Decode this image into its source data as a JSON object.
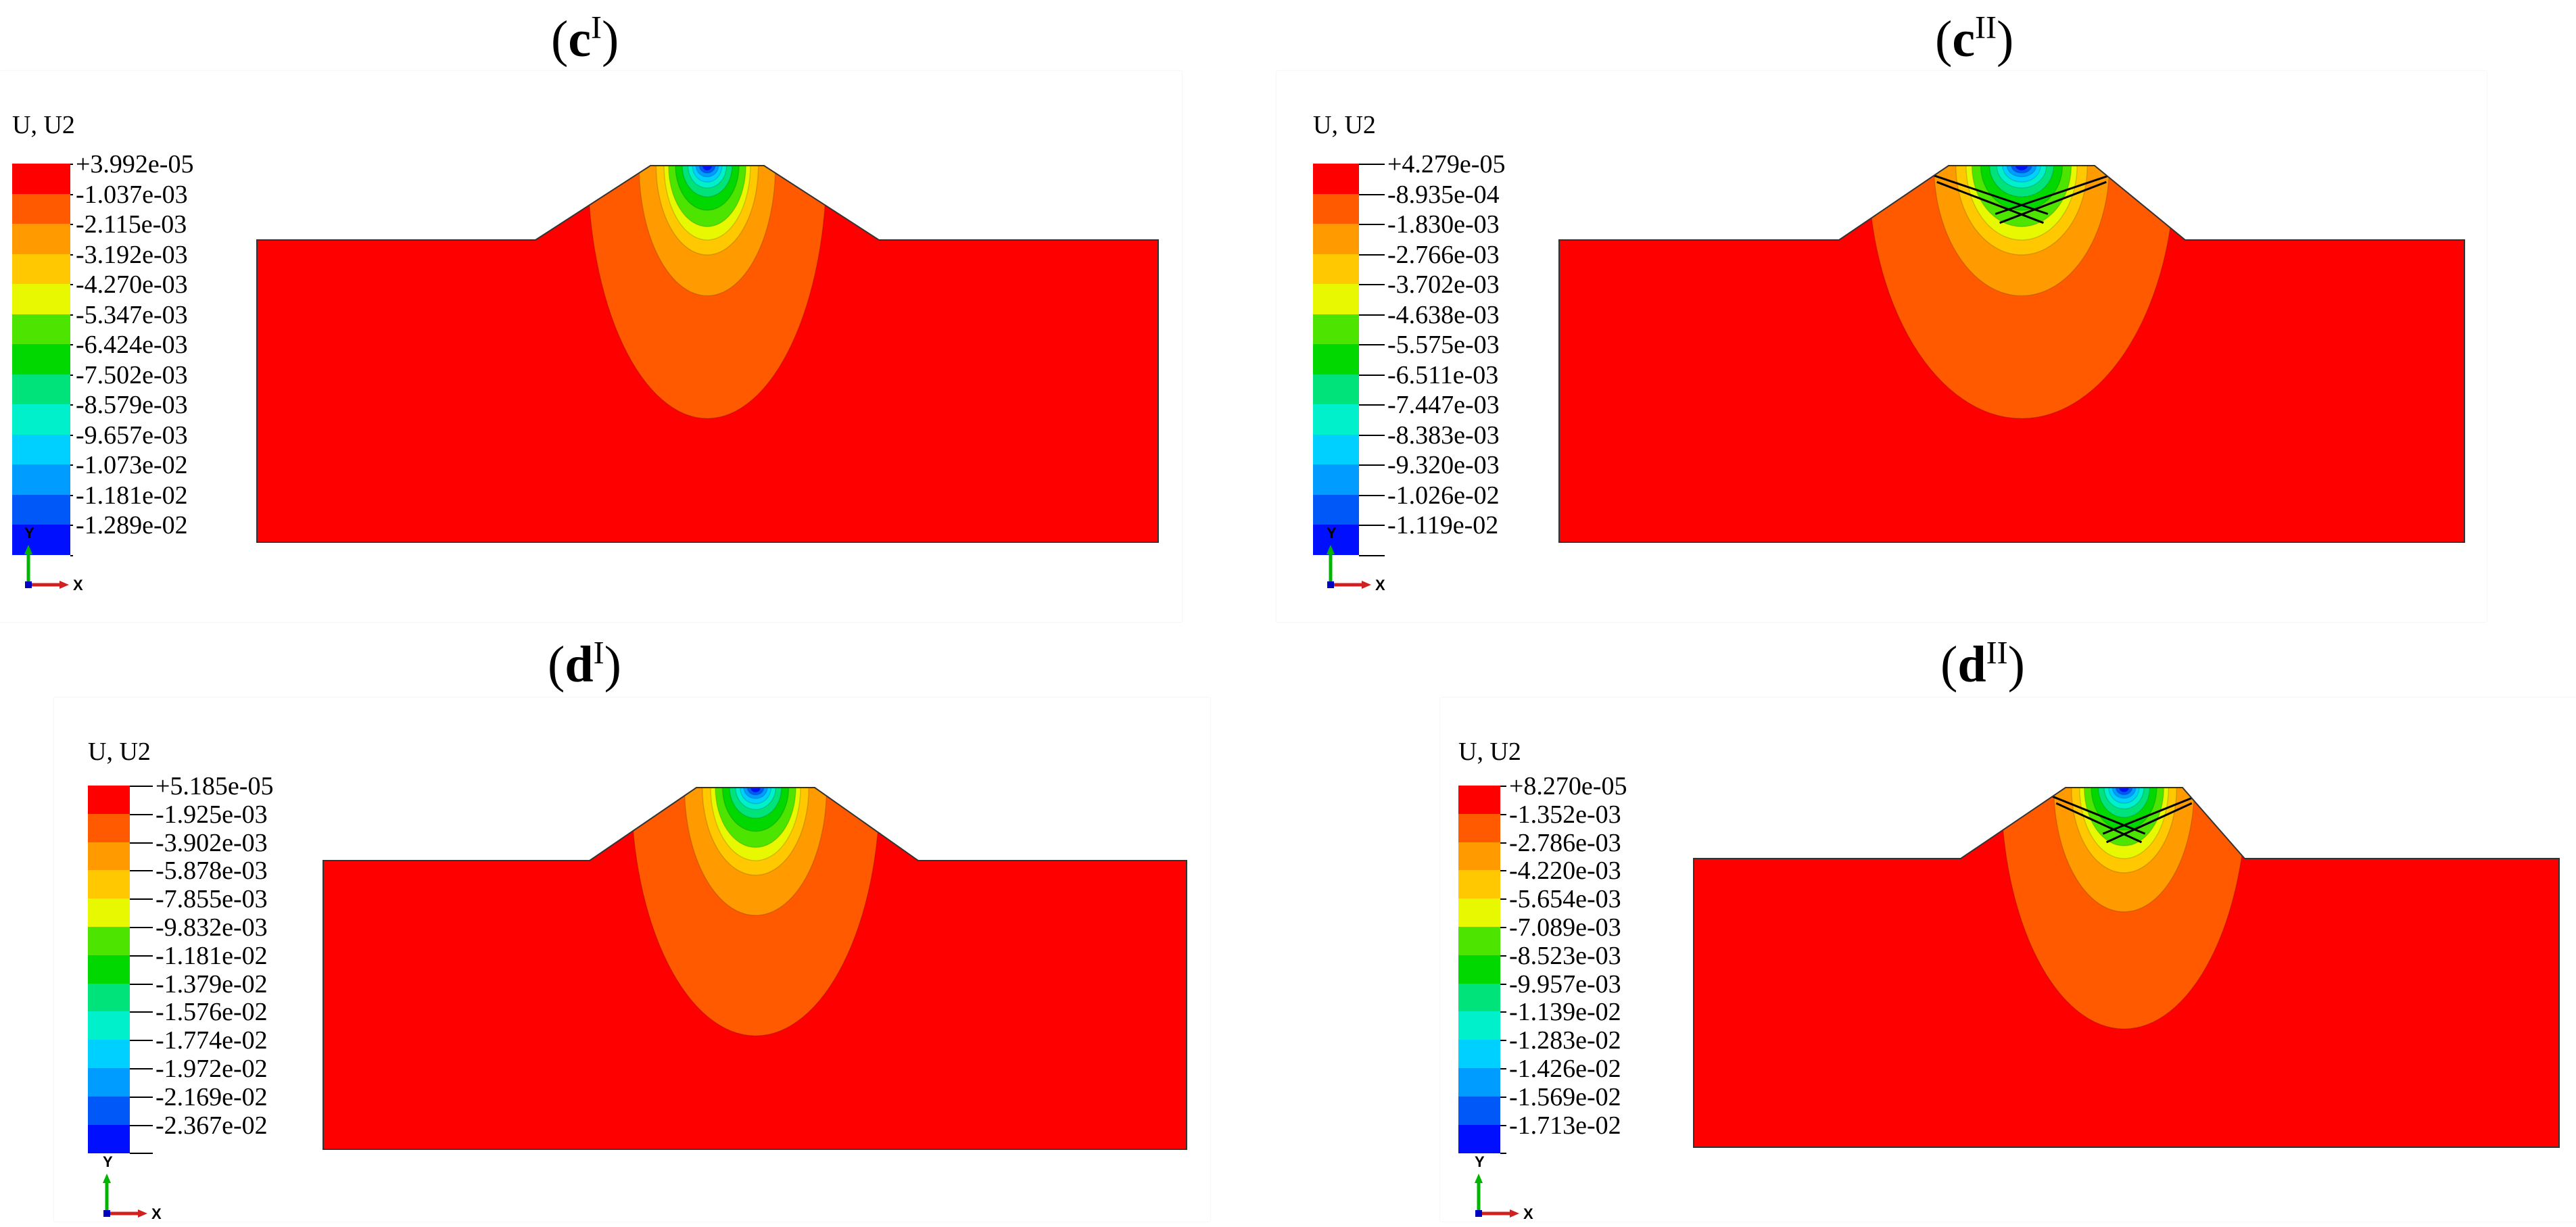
{
  "panels": [
    {
      "id": "cI",
      "title": {
        "letter": "c",
        "numeral": "I"
      },
      "legend": {
        "title": "U, U2",
        "labels": [
          "+3.992e-05",
          "-1.037e-03",
          "-2.115e-03",
          "-3.192e-03",
          "-4.270e-03",
          "-5.347e-03",
          "-6.424e-03",
          "-7.502e-03",
          "-8.579e-03",
          "-9.657e-03",
          "-1.073e-02",
          "-1.181e-02",
          "-1.289e-02"
        ]
      },
      "axis": {
        "y": "Y",
        "x": "X"
      },
      "crossed_layers": false
    },
    {
      "id": "cII",
      "title": {
        "letter": "c",
        "numeral": "II"
      },
      "legend": {
        "title": "U, U2",
        "labels": [
          "+4.279e-05",
          "-8.935e-04",
          "-1.830e-03",
          "-2.766e-03",
          "-3.702e-03",
          "-4.638e-03",
          "-5.575e-03",
          "-6.511e-03",
          "-7.447e-03",
          "-8.383e-03",
          "-9.320e-03",
          "-1.026e-02",
          "-1.119e-02"
        ]
      },
      "axis": {
        "y": "Y",
        "x": "X"
      },
      "crossed_layers": true
    },
    {
      "id": "dI",
      "title": {
        "letter": "d",
        "numeral": "I"
      },
      "legend": {
        "title": "U, U2",
        "labels": [
          "+5.185e-05",
          "-1.925e-03",
          "-3.902e-03",
          "-5.878e-03",
          "-7.855e-03",
          "-9.832e-03",
          "-1.181e-02",
          "-1.379e-02",
          "-1.576e-02",
          "-1.774e-02",
          "-1.972e-02",
          "-2.169e-02",
          "-2.367e-02"
        ]
      },
      "axis": {
        "y": "Y",
        "x": "X"
      },
      "crossed_layers": false
    },
    {
      "id": "dII",
      "title": {
        "letter": "d",
        "numeral": "II"
      },
      "legend": {
        "title": "U, U2",
        "labels": [
          "+8.270e-05",
          "-1.352e-03",
          "-2.786e-03",
          "-4.220e-03",
          "-5.654e-03",
          "-7.089e-03",
          "-8.523e-03",
          "-9.957e-03",
          "-1.139e-02",
          "-1.283e-02",
          "-1.426e-02",
          "-1.569e-02",
          "-1.713e-02"
        ]
      },
      "axis": {
        "y": "Y",
        "x": "X"
      },
      "crossed_layers": true
    }
  ],
  "colors": {
    "contour": [
      "#ff0000",
      "#ff5a00",
      "#ff9a00",
      "#ffc800",
      "#e8f800",
      "#4de400",
      "#00d800",
      "#00e27a",
      "#00f0cc",
      "#00d0ff",
      "#009cff",
      "#0058f8",
      "#0010ff"
    ],
    "model_fill": "#ff0000",
    "axis_y": "#00b400",
    "axis_x": "#d02020",
    "axis_origin": "#0000c0"
  }
}
